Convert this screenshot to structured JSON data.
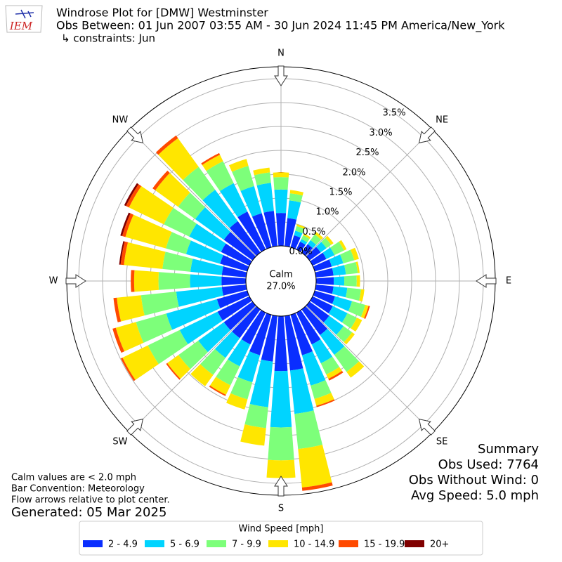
{
  "logo": "IEM",
  "chart_data": {
    "type": "windrose",
    "title": "Windrose Plot for [DMW] Westminster",
    "subtitle": "Obs Between: 01 Jun 2007 03:55 AM - 30 Jun 2024 11:45 PM America/New_York",
    "constraints": "↳ constraints: Jun",
    "calm_label": "Calm",
    "calm_value": "27.0%",
    "compass_labels": [
      "N",
      "NE",
      "E",
      "SE",
      "S",
      "SW",
      "W",
      "NW"
    ],
    "categories": [
      null,
      null,
      null,
      null,
      null,
      null,
      null,
      null,
      null,
      null,
      null,
      null,
      null,
      null,
      null,
      null,
      null,
      null,
      null,
      null,
      null,
      null,
      null,
      null,
      null,
      null,
      null,
      null,
      null,
      null,
      null,
      null,
      null,
      null,
      null,
      null
    ],
    "ylim": [
      0,
      3.75
    ],
    "yticks": [
      {
        "value": 0,
        "label": "0.0%"
      },
      {
        "value": 0.5,
        "label": "0.5%"
      },
      {
        "value": 1,
        "label": "1.0%"
      },
      {
        "value": 1.5,
        "label": "1.5%"
      },
      {
        "value": 2,
        "label": "2.0%"
      },
      {
        "value": 2.5,
        "label": "2.5%"
      },
      {
        "value": 3,
        "label": "3.0%"
      },
      {
        "value": 3.5,
        "label": "3.5%"
      }
    ],
    "grid": true,
    "legend_title": "Wind Speed [mph]",
    "series": [
      {
        "name": "2 - 4.9",
        "color": "#0a2eff",
        "values": [
          0.69,
          0.59,
          0.26,
          0.18,
          0.22,
          0.29,
          0.32,
          0.37,
          0.37,
          0.37,
          0.37,
          0.44,
          0.47,
          0.51,
          0.66,
          0.74,
          0.88,
          1.15,
          1.15,
          0.96,
          0.88,
          0.74,
          0.74,
          0.74,
          0.74,
          0.66,
          0.51,
          0.51,
          0.51,
          0.59,
          0.66,
          0.74,
          0.81,
          0.88,
          0.74,
          0.74
        ]
      },
      {
        "name": "5 - 6.9",
        "color": "#00d4ff",
        "values": [
          0.49,
          0.37,
          0.1,
          0.06,
          0.1,
          0.15,
          0.19,
          0.25,
          0.26,
          0.22,
          0.29,
          0.37,
          0.34,
          0.37,
          0.51,
          0.44,
          0.66,
          0.91,
          1.18,
          0.96,
          0.59,
          0.51,
          0.51,
          0.66,
          0.88,
          1.1,
          0.96,
          0.66,
          0.66,
          0.74,
          0.74,
          0.74,
          0.81,
          0.66,
          0.59,
          0.59
        ]
      },
      {
        "name": "7 - 9.9",
        "color": "#7dff7a",
        "values": [
          0.26,
          0.15,
          0.1,
          0.09,
          0.15,
          0.12,
          0.22,
          0.24,
          0.25,
          0.26,
          0.29,
          0.29,
          0.22,
          0.22,
          0.44,
          0.26,
          0.29,
          0.74,
          0.69,
          0.44,
          0.37,
          0.44,
          0.44,
          0.51,
          0.74,
          0.66,
          0.74,
          0.66,
          0.59,
          0.44,
          0.59,
          0.44,
          0.59,
          0.51,
          0.44,
          0.22
        ]
      },
      {
        "name": "10 - 14.9",
        "color": "#ffe600",
        "values": [
          0.1,
          0.07,
          0.04,
          0.04,
          0.06,
          0.06,
          0.06,
          0.1,
          0.04,
          0.07,
          0.07,
          0.07,
          0.12,
          0.07,
          0.15,
          0.1,
          0.15,
          0.81,
          0.37,
          0.37,
          0.22,
          0.22,
          0.29,
          0.29,
          0.59,
          0.44,
          0.51,
          0.51,
          0.81,
          0.88,
          0.81,
          0.59,
          0.74,
          0.15,
          0.15,
          0.1
        ]
      },
      {
        "name": "15 - 19.9",
        "color": "#ff4a00",
        "values": [
          0,
          0,
          0,
          0,
          0,
          0,
          0,
          0,
          0,
          0,
          0,
          0.03,
          0,
          0,
          0,
          0.04,
          0.03,
          0.07,
          0,
          0,
          0,
          0.03,
          0,
          0.03,
          0.04,
          0.07,
          0.07,
          0.07,
          0.07,
          0.07,
          0.07,
          0.07,
          0.07,
          0.04,
          0,
          0
        ]
      },
      {
        "name": "20+",
        "color": "#800000",
        "values": [
          0,
          0,
          0,
          0,
          0,
          0,
          0,
          0,
          0,
          0,
          0,
          0,
          0,
          0,
          0,
          0,
          0,
          0,
          0,
          0,
          0,
          0,
          0,
          0,
          0,
          0,
          0,
          0,
          0.03,
          0.04,
          0.04,
          0,
          0,
          0,
          0,
          0
        ]
      }
    ],
    "summary": [
      "Summary",
      "Obs Used: 7764",
      "Obs Without Wind: 0",
      "Avg Speed: 5.0 mph"
    ],
    "notes": [
      "Calm values are < 2.0 mph",
      "Bar Convention: Meteorology",
      "Flow arrows relative to plot center."
    ],
    "generated": "Generated: 05 Mar 2025"
  }
}
